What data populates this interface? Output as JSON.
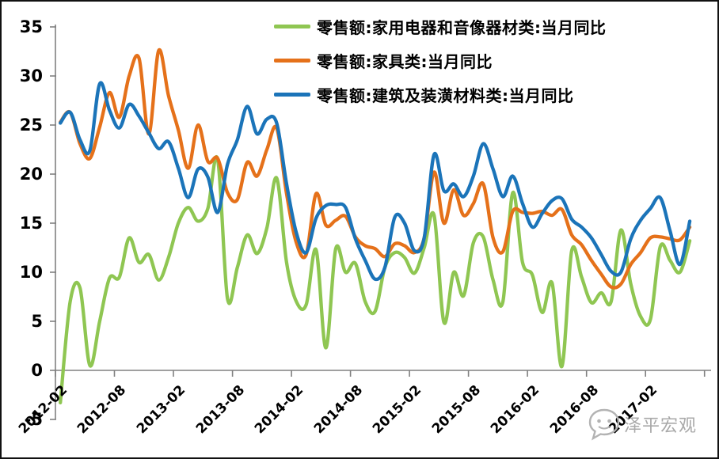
{
  "watermark": {
    "text": "泽平宏观",
    "icon": "speech-bubble-logo",
    "color": "#ababab"
  },
  "axis_colors": {
    "axis_line": "#808080",
    "label_color": "#000000"
  },
  "chart_data": {
    "type": "line",
    "title": "",
    "xlabel": "",
    "ylabel": "",
    "smoothed": true,
    "grid": false,
    "legend_position": "top-center",
    "ylim": [
      -5,
      35
    ],
    "y_ticks": [
      35,
      30,
      25,
      20,
      15,
      10,
      5,
      0,
      -5
    ],
    "x_tick_labels": [
      "2012-02",
      "2012-08",
      "2013-02",
      "2013-08",
      "2014-02",
      "2014-08",
      "2015-02",
      "2015-08",
      "2016-02",
      "2016-08",
      "2017-02"
    ],
    "x_tick_indices": [
      0,
      6,
      12,
      18,
      24,
      30,
      36,
      42,
      48,
      54,
      60
    ],
    "x_labels": [
      "2012-02",
      "2012-03",
      "2012-04",
      "2012-05",
      "2012-06",
      "2012-07",
      "2012-08",
      "2012-09",
      "2012-10",
      "2012-11",
      "2012-12",
      "2013-01",
      "2013-02",
      "2013-03",
      "2013-04",
      "2013-05",
      "2013-06",
      "2013-07",
      "2013-08",
      "2013-09",
      "2013-10",
      "2013-11",
      "2013-12",
      "2014-01",
      "2014-02",
      "2014-03",
      "2014-04",
      "2014-05",
      "2014-06",
      "2014-07",
      "2014-08",
      "2014-09",
      "2014-10",
      "2014-11",
      "2014-12",
      "2015-01",
      "2015-02",
      "2015-03",
      "2015-04",
      "2015-05",
      "2015-06",
      "2015-07",
      "2015-08",
      "2015-09",
      "2015-10",
      "2015-11",
      "2015-12",
      "2016-01",
      "2016-02",
      "2016-03",
      "2016-04",
      "2016-05",
      "2016-06",
      "2016-07",
      "2016-08",
      "2016-09",
      "2016-10",
      "2016-11",
      "2016-12",
      "2017-01",
      "2017-02",
      "2017-03",
      "2017-04",
      "2017-05",
      "2017-06"
    ],
    "series": [
      {
        "name": "零售额:家用电器和音像器材类:当月同比",
        "color": "#8FC652",
        "values": [
          -3.3,
          7.0,
          8.4,
          0.5,
          5.0,
          9.4,
          9.5,
          13.5,
          11.0,
          11.8,
          9.2,
          11.5,
          15.0,
          16.6,
          15.2,
          16.5,
          21.5,
          7.3,
          10.5,
          13.8,
          11.9,
          14.5,
          19.6,
          11.0,
          7.0,
          6.7,
          12.3,
          2.3,
          12.4,
          10.0,
          10.9,
          7.0,
          6.0,
          10.5,
          12.0,
          11.5,
          9.9,
          12.5,
          15.8,
          4.9,
          10.0,
          7.6,
          13.0,
          13.6,
          9.2,
          7.0,
          18.1,
          11.0,
          9.7,
          5.9,
          8.9,
          0.4,
          12.2,
          9.5,
          6.9,
          7.9,
          7.0,
          14.3,
          8.8,
          5.5,
          5.2,
          12.6,
          11.2,
          10.0,
          13.2
        ]
      },
      {
        "name": "零售额:家具类:当月同比",
        "color": "#E5711A",
        "values": [
          25.3,
          26.3,
          23.1,
          21.6,
          24.8,
          28.3,
          25.8,
          30.0,
          31.8,
          24.1,
          32.6,
          28.0,
          24.5,
          20.6,
          25.0,
          21.3,
          21.6,
          18.1,
          17.4,
          21.2,
          19.8,
          22.5,
          24.7,
          18.0,
          13.0,
          11.8,
          18.0,
          14.8,
          15.3,
          15.7,
          13.6,
          12.7,
          12.4,
          11.6,
          12.9,
          12.7,
          12.0,
          13.5,
          20.2,
          15.0,
          18.4,
          15.8,
          17.0,
          19.0,
          13.5,
          12.1,
          16.2,
          16.1,
          16.0,
          16.2,
          15.8,
          16.4,
          13.8,
          12.8,
          11.2,
          9.8,
          8.5,
          8.8,
          10.8,
          12.0,
          13.5,
          13.6,
          13.4,
          13.3,
          14.6
        ]
      },
      {
        "name": "零售额:建筑及装潢材料类:当月同比",
        "color": "#1B74B9",
        "values": [
          25.2,
          26.3,
          23.5,
          22.4,
          29.2,
          26.5,
          24.7,
          27.1,
          25.9,
          24.2,
          22.6,
          23.3,
          20.6,
          17.6,
          20.5,
          19.7,
          16.1,
          21.0,
          23.5,
          26.9,
          24.1,
          25.6,
          25.2,
          19.0,
          14.0,
          12.0,
          15.5,
          16.8,
          16.9,
          16.6,
          13.4,
          11.2,
          9.3,
          10.5,
          15.6,
          15.0,
          12.2,
          13.5,
          22.0,
          18.3,
          19.0,
          17.7,
          19.8,
          23.1,
          20.5,
          17.7,
          19.8,
          17.0,
          14.6,
          16.0,
          17.3,
          17.5,
          15.4,
          14.6,
          13.5,
          11.8,
          10.1,
          10.0,
          13.4,
          15.3,
          16.5,
          17.6,
          14.2,
          10.8,
          15.2
        ]
      }
    ]
  }
}
